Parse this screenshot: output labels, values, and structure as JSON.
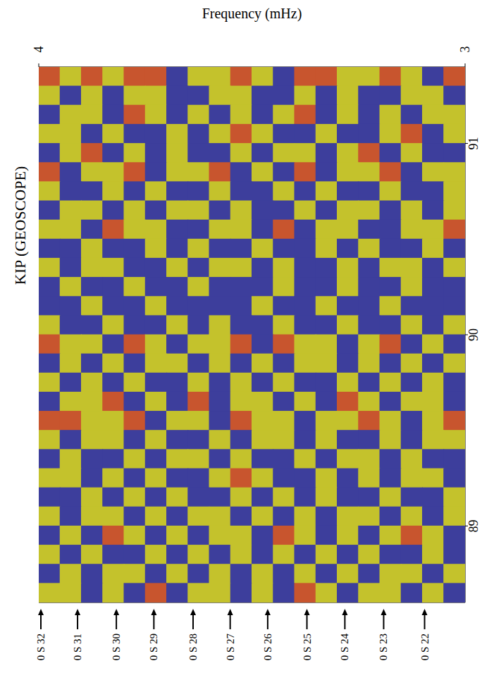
{
  "chart_data": {
    "type": "heatmap",
    "title": "KIP (GEOSCOPE)",
    "xlabel": "Frequency (mHz)",
    "xlim": [
      4,
      3
    ],
    "xticks": [
      3,
      4
    ],
    "ylim": [
      88.6,
      91.4
    ],
    "yticks": [
      89,
      90,
      91
    ],
    "colors": [
      "#3d3e9c",
      "#c4c22c",
      "#c8552e"
    ],
    "annotations": [
      {
        "label": "0 S 32",
        "x": 3.995
      },
      {
        "label": "0 S 31",
        "x": 3.909
      },
      {
        "label": "0 S 30",
        "x": 3.818
      },
      {
        "label": "0 S 29",
        "x": 3.73
      },
      {
        "label": "0 S 28",
        "x": 3.638
      },
      {
        "label": "0 S 27",
        "x": 3.551
      },
      {
        "label": "0 S 26",
        "x": 3.463
      },
      {
        "label": "0 S 25",
        "x": 3.371
      },
      {
        "label": "0 S 24",
        "x": 3.282
      },
      {
        "label": "0 S 23",
        "x": 3.191
      },
      {
        "label": "0 S 22",
        "x": 3.095
      }
    ],
    "x": [
      3.975,
      3.925,
      3.875,
      3.825,
      3.775,
      3.725,
      3.675,
      3.625,
      3.575,
      3.525,
      3.475,
      3.425,
      3.375,
      3.325,
      3.275,
      3.225,
      3.175,
      3.125,
      3.075,
      3.025
    ],
    "y": [
      91.35,
      91.25,
      91.15,
      91.05,
      90.95,
      90.85,
      90.75,
      90.65,
      90.55,
      90.45,
      90.35,
      90.25,
      90.15,
      90.05,
      89.95,
      89.85,
      89.75,
      89.65,
      89.55,
      89.45,
      89.35,
      89.25,
      89.15,
      89.05,
      88.95,
      88.85,
      88.75,
      88.65
    ],
    "cells": [
      [
        2,
        1,
        2,
        1,
        2,
        2,
        0,
        1,
        1,
        2,
        1,
        0,
        2,
        2,
        1,
        1,
        2,
        1,
        0,
        2
      ],
      [
        1,
        0,
        1,
        0,
        1,
        1,
        0,
        0,
        1,
        1,
        0,
        0,
        1,
        0,
        1,
        0,
        0,
        1,
        1,
        0
      ],
      [
        0,
        1,
        1,
        0,
        2,
        1,
        0,
        1,
        0,
        1,
        0,
        1,
        2,
        0,
        1,
        0,
        1,
        0,
        1,
        1
      ],
      [
        1,
        1,
        0,
        1,
        0,
        0,
        1,
        0,
        1,
        2,
        1,
        0,
        0,
        1,
        0,
        0,
        1,
        2,
        0,
        1
      ],
      [
        0,
        1,
        2,
        0,
        1,
        0,
        1,
        0,
        0,
        1,
        0,
        1,
        1,
        0,
        1,
        2,
        0,
        1,
        0,
        0
      ],
      [
        2,
        0,
        1,
        1,
        2,
        0,
        1,
        1,
        2,
        0,
        1,
        0,
        2,
        0,
        1,
        1,
        2,
        0,
        1,
        1
      ],
      [
        1,
        0,
        0,
        1,
        0,
        1,
        0,
        0,
        1,
        0,
        0,
        1,
        0,
        1,
        0,
        0,
        1,
        0,
        0,
        1
      ],
      [
        0,
        1,
        1,
        0,
        1,
        0,
        1,
        1,
        0,
        1,
        0,
        0,
        1,
        0,
        1,
        1,
        0,
        1,
        0,
        1
      ],
      [
        1,
        1,
        0,
        2,
        1,
        1,
        0,
        0,
        1,
        1,
        0,
        2,
        0,
        1,
        1,
        0,
        0,
        1,
        1,
        2
      ],
      [
        0,
        0,
        1,
        0,
        0,
        1,
        0,
        1,
        0,
        0,
        1,
        0,
        0,
        1,
        0,
        1,
        0,
        0,
        1,
        0
      ],
      [
        1,
        0,
        1,
        1,
        0,
        0,
        1,
        0,
        1,
        1,
        0,
        1,
        0,
        0,
        1,
        0,
        1,
        1,
        0,
        1
      ],
      [
        0,
        1,
        0,
        0,
        1,
        0,
        0,
        1,
        0,
        0,
        0,
        1,
        0,
        0,
        1,
        0,
        0,
        1,
        0,
        0
      ],
      [
        0,
        0,
        1,
        0,
        0,
        1,
        0,
        0,
        0,
        0,
        1,
        0,
        0,
        1,
        0,
        0,
        1,
        0,
        0,
        0
      ],
      [
        1,
        0,
        0,
        1,
        0,
        0,
        1,
        0,
        1,
        0,
        0,
        1,
        0,
        0,
        1,
        0,
        0,
        1,
        0,
        1
      ],
      [
        2,
        1,
        1,
        0,
        2,
        1,
        0,
        1,
        1,
        2,
        0,
        2,
        1,
        1,
        0,
        1,
        2,
        0,
        1,
        0
      ],
      [
        0,
        1,
        0,
        1,
        0,
        1,
        1,
        0,
        1,
        0,
        1,
        0,
        1,
        1,
        0,
        1,
        0,
        1,
        0,
        1
      ],
      [
        1,
        0,
        1,
        0,
        1,
        0,
        0,
        1,
        0,
        1,
        0,
        1,
        0,
        0,
        1,
        0,
        1,
        0,
        1,
        0
      ],
      [
        0,
        1,
        1,
        2,
        0,
        1,
        0,
        2,
        0,
        1,
        1,
        0,
        1,
        0,
        2,
        1,
        0,
        1,
        1,
        0
      ],
      [
        2,
        2,
        1,
        1,
        2,
        0,
        1,
        1,
        0,
        2,
        1,
        1,
        0,
        1,
        1,
        2,
        1,
        0,
        1,
        2
      ],
      [
        1,
        0,
        1,
        1,
        0,
        1,
        0,
        0,
        1,
        0,
        1,
        1,
        0,
        1,
        0,
        0,
        1,
        0,
        1,
        1
      ],
      [
        0,
        1,
        0,
        0,
        1,
        0,
        1,
        1,
        0,
        1,
        0,
        0,
        1,
        0,
        1,
        1,
        0,
        1,
        0,
        0
      ],
      [
        1,
        1,
        0,
        1,
        0,
        1,
        0,
        0,
        1,
        2,
        1,
        0,
        0,
        1,
        0,
        1,
        0,
        1,
        1,
        0
      ],
      [
        0,
        0,
        1,
        0,
        1,
        0,
        1,
        0,
        0,
        1,
        0,
        1,
        0,
        1,
        0,
        0,
        1,
        0,
        0,
        1
      ],
      [
        1,
        0,
        1,
        1,
        0,
        1,
        0,
        1,
        1,
        0,
        1,
        0,
        1,
        0,
        1,
        1,
        0,
        1,
        0,
        1
      ],
      [
        0,
        1,
        0,
        2,
        1,
        0,
        1,
        0,
        1,
        1,
        0,
        2,
        1,
        0,
        1,
        0,
        1,
        2,
        1,
        0
      ],
      [
        1,
        0,
        1,
        0,
        0,
        1,
        0,
        1,
        0,
        1,
        0,
        1,
        0,
        1,
        0,
        1,
        0,
        0,
        1,
        0
      ],
      [
        0,
        1,
        0,
        1,
        1,
        0,
        1,
        0,
        1,
        0,
        1,
        0,
        1,
        0,
        1,
        0,
        1,
        1,
        0,
        1
      ],
      [
        1,
        1,
        0,
        1,
        0,
        2,
        0,
        1,
        1,
        0,
        1,
        0,
        2,
        1,
        0,
        1,
        1,
        0,
        1,
        0
      ]
    ]
  }
}
